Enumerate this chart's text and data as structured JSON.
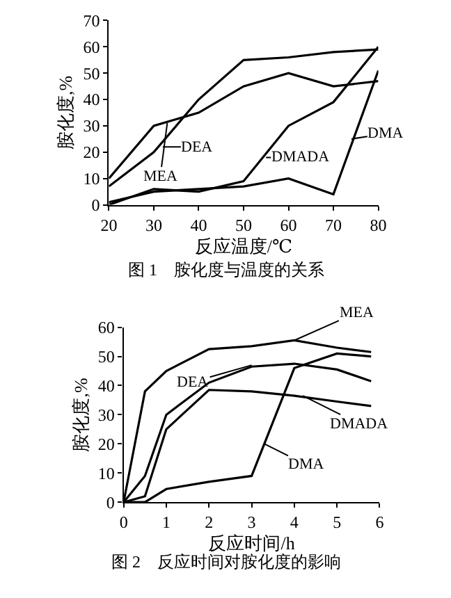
{
  "chart_data": [
    {
      "type": "line",
      "title": "图 1　胺化度与温度的关系",
      "xlabel": "反应温度/℃",
      "ylabel": "胺化度,%",
      "x": [
        20,
        30,
        40,
        50,
        60,
        70,
        80
      ],
      "xlim": [
        20,
        80
      ],
      "xticks": [
        20,
        30,
        40,
        50,
        60,
        70,
        80
      ],
      "ylim": [
        0,
        70
      ],
      "yticks": [
        0,
        10,
        20,
        30,
        40,
        50,
        60,
        70
      ],
      "series": [
        {
          "color": "#000000",
          "values": [
            10,
            30,
            35,
            45,
            50,
            45,
            47
          ]
        },
        {
          "color": "#000000",
          "values": [
            7,
            20,
            40,
            55,
            56,
            58,
            59
          ]
        },
        {
          "color": "#000000",
          "values": [
            0,
            6,
            5,
            9,
            30,
            39,
            60
          ]
        },
        {
          "color": "#000000",
          "values": [
            1,
            5,
            6,
            7,
            10,
            4,
            51
          ]
        }
      ],
      "annotations": [
        {
          "text": "MEA",
          "x": 33,
          "y": 31
        },
        {
          "text": "DEA",
          "x": 32,
          "y": 22
        },
        {
          "text": "DMADA",
          "x": 55,
          "y": 18
        },
        {
          "text": "DMA",
          "x": 74,
          "y": 25
        }
      ]
    },
    {
      "type": "line",
      "title": "图 2　反应时间对胺化度的影响",
      "xlabel": "反应时间/h",
      "ylabel": "胺化度,%",
      "x": [
        0,
        0.5,
        1,
        2,
        3,
        4,
        5,
        5.8
      ],
      "xlim": [
        0,
        6
      ],
      "xticks": [
        0,
        1,
        2,
        3,
        4,
        5,
        6
      ],
      "ylim": [
        0,
        60
      ],
      "yticks": [
        0,
        10,
        20,
        30,
        40,
        50,
        60
      ],
      "series": [
        {
          "color": "#000000",
          "values": [
            0,
            38,
            45,
            52.5,
            53.5,
            55.5,
            53,
            51.5
          ]
        },
        {
          "color": "#000000",
          "values": [
            0,
            9,
            30,
            41,
            46.5,
            47.5,
            45.5,
            41.5
          ]
        },
        {
          "color": "#000000",
          "values": [
            0,
            2,
            25,
            38.5,
            38,
            36.5,
            34.5,
            33
          ]
        },
        {
          "color": "#000000",
          "values": [
            0,
            0,
            4.5,
            7,
            9,
            46,
            51,
            50
          ]
        }
      ],
      "annotations": [
        {
          "text": "MEA",
          "x": 4,
          "y": 55.5
        },
        {
          "text": "DEA",
          "x": 3,
          "y": 47
        },
        {
          "text": "DMADA",
          "x": 4.2,
          "y": 36.5
        },
        {
          "text": "DMA",
          "x": 3.3,
          "y": 20
        }
      ]
    }
  ]
}
